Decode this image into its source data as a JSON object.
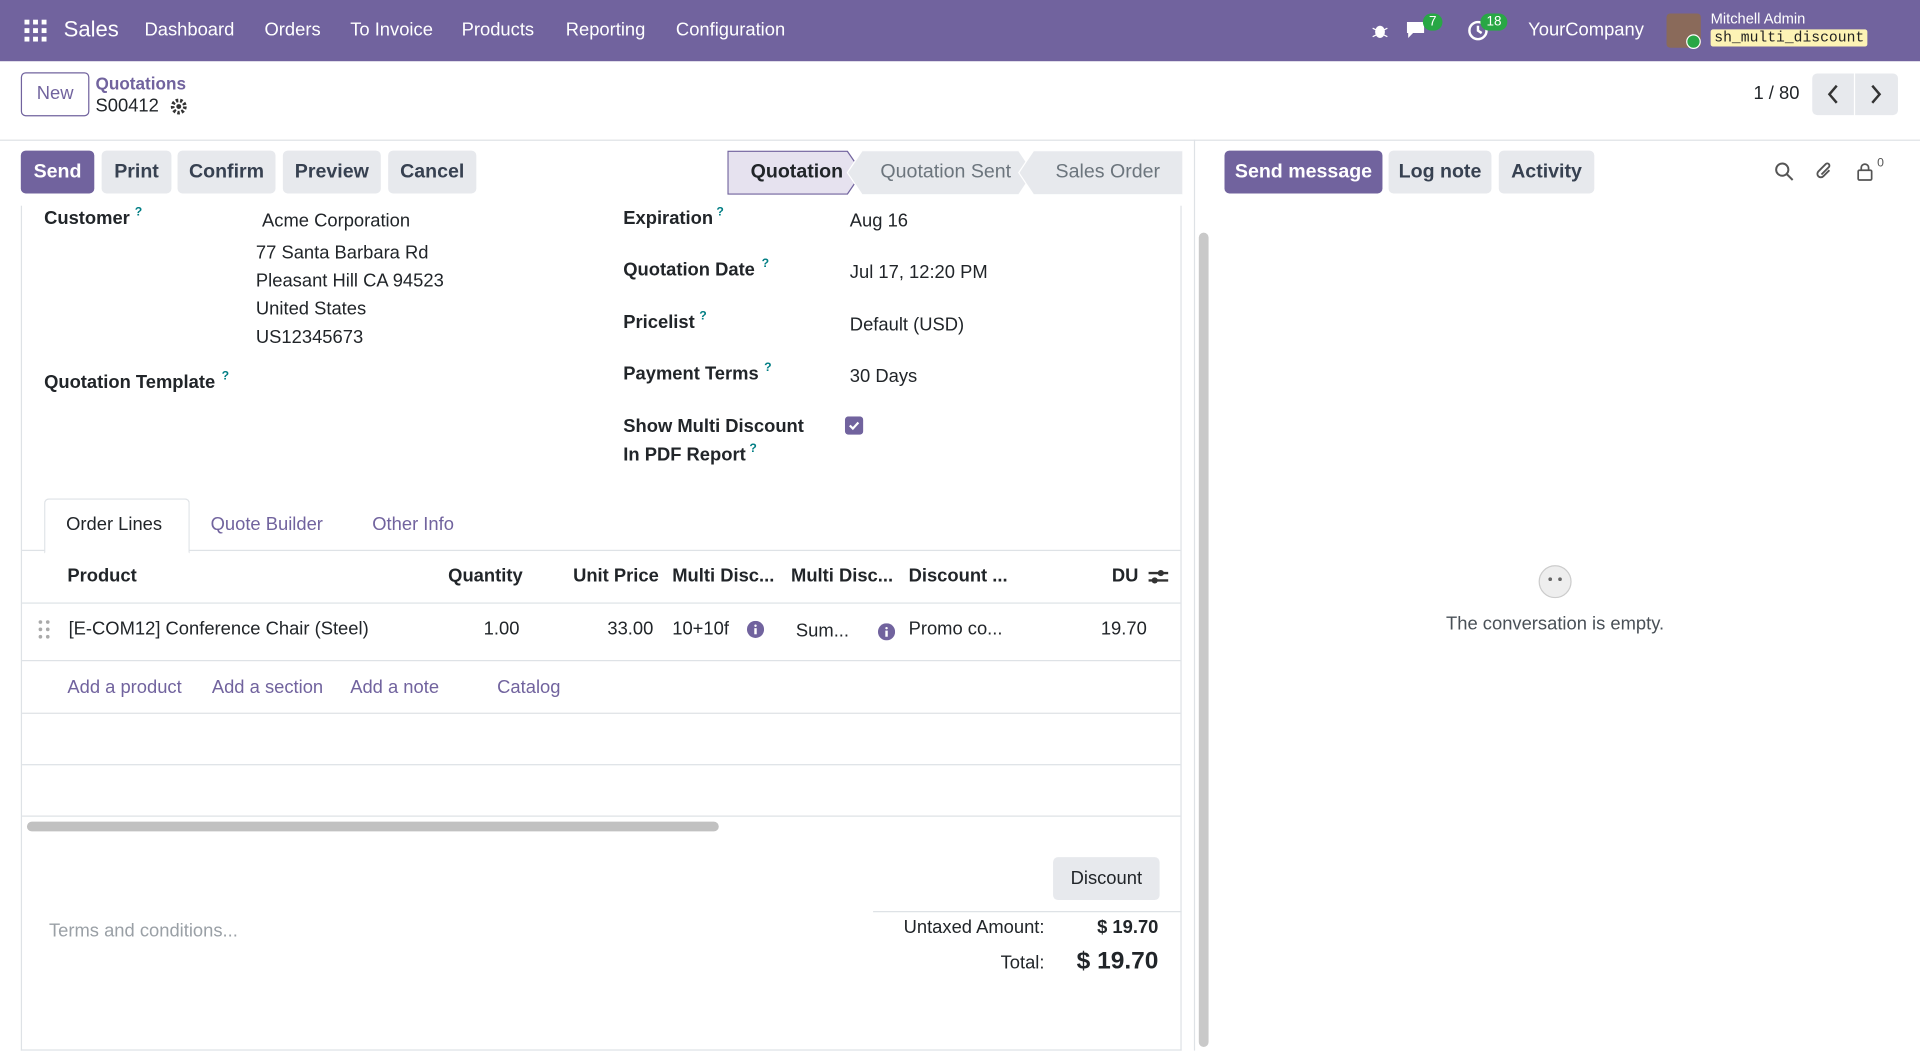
{
  "navbar": {
    "app": "Sales",
    "menu": [
      "Dashboard",
      "Orders",
      "To Invoice",
      "Products",
      "Reporting",
      "Configuration"
    ],
    "messages_count": "7",
    "activities_count": "18",
    "company": "YourCompany",
    "user": "Mitchell Admin",
    "database": "sh_multi_discount"
  },
  "breadcrumb": {
    "new_button": "New",
    "parent": "Quotations",
    "record": "S00412",
    "pager": "1 / 80"
  },
  "actions": [
    "Send",
    "Print",
    "Confirm",
    "Preview",
    "Cancel"
  ],
  "statusbar": [
    "Quotation",
    "Quotation Sent",
    "Sales Order"
  ],
  "form": {
    "help": "?",
    "customer": {
      "label": "Customer",
      "lines": [
        "Acme Corporation",
        "77 Santa Barbara Rd",
        "Pleasant Hill CA 94523",
        "United States",
        "US12345673"
      ]
    },
    "quotation_template": {
      "label": "Quotation Template"
    },
    "expiration": {
      "label": "Expiration",
      "value": "Aug 16"
    },
    "quotation_date": {
      "label": "Quotation Date",
      "value": "Jul 17, 12:20 PM"
    },
    "pricelist": {
      "label": "Pricelist",
      "value": "Default (USD)"
    },
    "payment_terms": {
      "label": "Payment Terms",
      "value": "30 Days"
    },
    "show_multi_discount": {
      "label": [
        "Show Multi Discount",
        "In PDF Report"
      ]
    }
  },
  "tabs": [
    "Order Lines",
    "Quote Builder",
    "Other Info"
  ],
  "table": {
    "headers": [
      "Product",
      "Quantity",
      "Unit Price",
      "Multi Disc...",
      "Multi Disc...",
      "Discount ...",
      "DU"
    ],
    "rows": [
      [
        "[E-COM12] Conference Chair (Steel)",
        "1.00",
        "33.00",
        "10+10f",
        "Sum...",
        "Promo co...",
        "19.70"
      ]
    ],
    "links": [
      "Add a product",
      "Add a section",
      "Add a note",
      "Catalog"
    ]
  },
  "discount_button": "Discount",
  "terms_placeholder": "Terms and conditions...",
  "totals": {
    "untaxed_label": "Untaxed Amount:",
    "untaxed_value": "$ 19.70",
    "total_label": "Total:",
    "total_value": "$ 19.70"
  },
  "chatter": {
    "buttons": [
      "Send message",
      "Log note",
      "Activity"
    ],
    "followers": "0",
    "empty": "The conversation is empty."
  }
}
